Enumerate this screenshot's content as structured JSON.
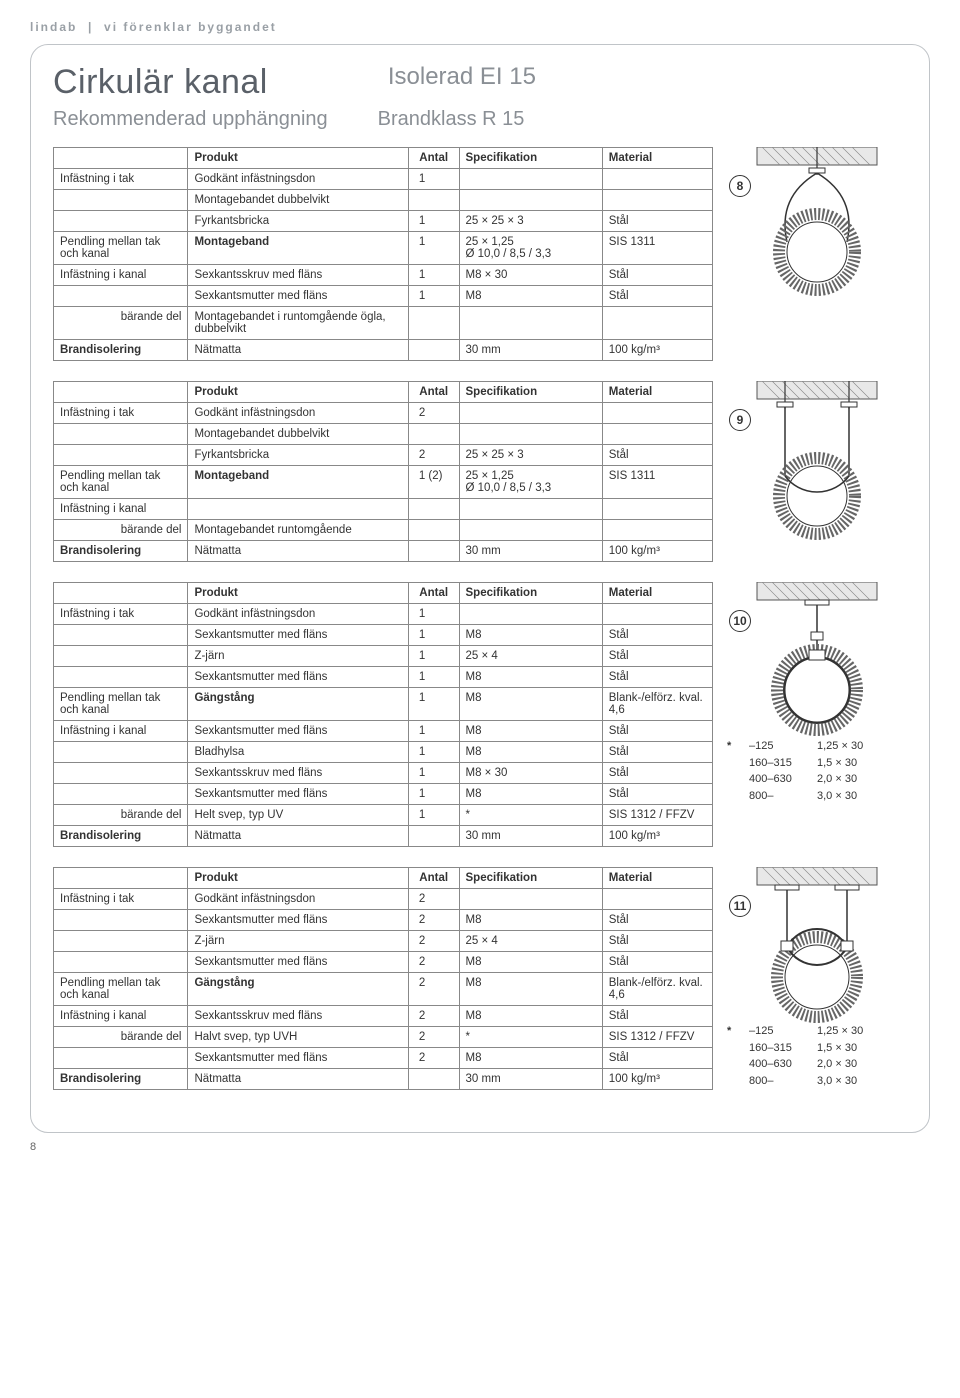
{
  "header_tag_left": "lindab",
  "header_tag_right": "vi förenklar byggandet",
  "title_main": "Cirkulär kanal",
  "title_sub": "Isolerad EI 15",
  "subtitle_main": "Rekommenderad upphängning",
  "subtitle_sub": "Brandklass R 15",
  "page_number": "8",
  "table_headers": {
    "produkt": "Produkt",
    "antal": "Antal",
    "spec": "Specifikation",
    "material": "Material"
  },
  "row_labels": {
    "inf_tak": "Infästning i tak",
    "pendling": "Pendling mellan tak och kanal",
    "inf_kanal": "Infästning i kanal",
    "barande": "bärande del",
    "brand": "Brandisolering"
  },
  "t8": {
    "badge": "8",
    "rows": [
      {
        "cat": "inf_tak",
        "prod": "Godkänt infästningsdon",
        "antal": "1",
        "spec": "",
        "mat": ""
      },
      {
        "cat": "",
        "prod": "Montagebandet dubbelvikt",
        "antal": "",
        "spec": "",
        "mat": ""
      },
      {
        "cat": "",
        "prod": "Fyrkantsbricka",
        "antal": "1",
        "spec": "25 × 25 × 3",
        "mat": "Stål"
      },
      {
        "cat": "pendling",
        "prod": "Montageband",
        "bold": true,
        "antal": "1",
        "spec": "25 × 1,25\nØ 10,0 / 8,5 / 3,3",
        "mat": "SIS 1311"
      },
      {
        "cat": "inf_kanal",
        "prod": "Sexkantsskruv med fläns",
        "antal": "1",
        "spec": "M8 × 30",
        "mat": "Stål"
      },
      {
        "cat": "",
        "prod": "Sexkantsmutter med fläns",
        "antal": "1",
        "spec": "M8",
        "mat": "Stål"
      },
      {
        "cat": "barande",
        "prod": "Montagebandet i runtomgående ögla, dubbelvikt",
        "antal": "",
        "spec": "",
        "mat": ""
      },
      {
        "cat": "brand",
        "prod": "Nätmatta",
        "antal": "",
        "spec": "30 mm",
        "mat": "100 kg/m³"
      }
    ]
  },
  "t9": {
    "badge": "9",
    "rows": [
      {
        "cat": "inf_tak",
        "prod": "Godkänt infästningsdon",
        "antal": "2",
        "spec": "",
        "mat": ""
      },
      {
        "cat": "",
        "prod": "Montagebandet dubbelvikt",
        "antal": "",
        "spec": "",
        "mat": ""
      },
      {
        "cat": "",
        "prod": "Fyrkantsbricka",
        "antal": "2",
        "spec": "25 × 25 × 3",
        "mat": "Stål"
      },
      {
        "cat": "pendling",
        "prod": "Montageband",
        "bold": true,
        "antal": "1 (2)",
        "spec": "25 × 1,25\nØ 10,0 / 8,5 / 3,3",
        "mat": "SIS 1311"
      },
      {
        "cat": "inf_kanal",
        "prod": "",
        "antal": "",
        "spec": "",
        "mat": ""
      },
      {
        "cat": "barande",
        "prod": "Montagebandet runtomgående",
        "antal": "",
        "spec": "",
        "mat": ""
      },
      {
        "cat": "brand",
        "prod": "Nätmatta",
        "antal": "",
        "spec": "30 mm",
        "mat": "100 kg/m³"
      }
    ]
  },
  "t10": {
    "badge": "10",
    "rows": [
      {
        "cat": "inf_tak",
        "prod": "Godkänt infästningsdon",
        "antal": "1",
        "spec": "",
        "mat": ""
      },
      {
        "cat": "",
        "prod": "Sexkantsmutter med fläns",
        "antal": "1",
        "spec": "M8",
        "mat": "Stål"
      },
      {
        "cat": "",
        "prod": "Z-järn",
        "antal": "1",
        "spec": "25 × 4",
        "mat": "Stål"
      },
      {
        "cat": "",
        "prod": "Sexkantsmutter med fläns",
        "antal": "1",
        "spec": "M8",
        "mat": "Stål"
      },
      {
        "cat": "pendling",
        "prod": "Gängstång",
        "bold": true,
        "antal": "1",
        "spec": "M8",
        "mat": "Blank-/elförz. kval. 4,6"
      },
      {
        "cat": "inf_kanal",
        "prod": "Sexkantsmutter med fläns",
        "antal": "1",
        "spec": "M8",
        "mat": "Stål"
      },
      {
        "cat": "",
        "prod": "Bladhylsa",
        "antal": "1",
        "spec": "M8",
        "mat": "Stål"
      },
      {
        "cat": "",
        "prod": "Sexkantsskruv med fläns",
        "antal": "1",
        "spec": "M8 × 30",
        "mat": "Stål"
      },
      {
        "cat": "",
        "prod": "Sexkantsmutter med fläns",
        "antal": "1",
        "spec": "M8",
        "mat": "Stål"
      },
      {
        "cat": "barande",
        "prod": "Helt svep, typ UV",
        "antal": "1",
        "spec": "*",
        "mat": "SIS 1312 / FFZV"
      },
      {
        "cat": "brand",
        "prod": "Nätmatta",
        "antal": "",
        "spec": "30 mm",
        "mat": "100 kg/m³"
      }
    ],
    "note": [
      {
        "c0": "*",
        "c1": "–125",
        "c2": "1,25 × 30"
      },
      {
        "c0": "",
        "c1": "160–315",
        "c2": "1,5   × 30"
      },
      {
        "c0": "",
        "c1": "400–630",
        "c2": "2,0   × 30"
      },
      {
        "c0": "",
        "c1": "800–",
        "c2": "3,0   × 30"
      }
    ]
  },
  "t11": {
    "badge": "11",
    "rows": [
      {
        "cat": "inf_tak",
        "prod": "Godkänt infästningsdon",
        "antal": "2",
        "spec": "",
        "mat": ""
      },
      {
        "cat": "",
        "prod": "Sexkantsmutter med fläns",
        "antal": "2",
        "spec": "M8",
        "mat": "Stål"
      },
      {
        "cat": "",
        "prod": "Z-järn",
        "antal": "2",
        "spec": "25 × 4",
        "mat": "Stål"
      },
      {
        "cat": "",
        "prod": "Sexkantsmutter med fläns",
        "antal": "2",
        "spec": "M8",
        "mat": "Stål"
      },
      {
        "cat": "pendling",
        "prod": "Gängstång",
        "bold": true,
        "antal": "2",
        "spec": "M8",
        "mat": "Blank-/elförz. kval. 4,6"
      },
      {
        "cat": "inf_kanal",
        "prod": "Sexkantsskruv med fläns",
        "antal": "2",
        "spec": "M8",
        "mat": "Stål"
      },
      {
        "cat": "barande",
        "prod": "Halvt svep, typ UVH",
        "antal": "2",
        "spec": "*",
        "mat": "SIS 1312 / FFZV"
      },
      {
        "cat": "",
        "prod": "Sexkantsmutter med fläns",
        "antal": "2",
        "spec": "M8",
        "mat": "Stål"
      },
      {
        "cat": "brand",
        "prod": "Nätmatta",
        "antal": "",
        "spec": "30 mm",
        "mat": "100 kg/m³"
      }
    ],
    "note": [
      {
        "c0": "*",
        "c1": "–125",
        "c2": "1,25 × 30"
      },
      {
        "c0": "",
        "c1": "160–315",
        "c2": "1,5   × 30"
      },
      {
        "c0": "",
        "c1": "400–630",
        "c2": "2,0   × 30"
      },
      {
        "c0": "",
        "c1": "800–",
        "c2": "3,0   × 30"
      }
    ]
  },
  "colors": {
    "border": "#888888",
    "text": "#333333",
    "light_text": "#8a8f95",
    "frame": "#c0c4c8"
  }
}
